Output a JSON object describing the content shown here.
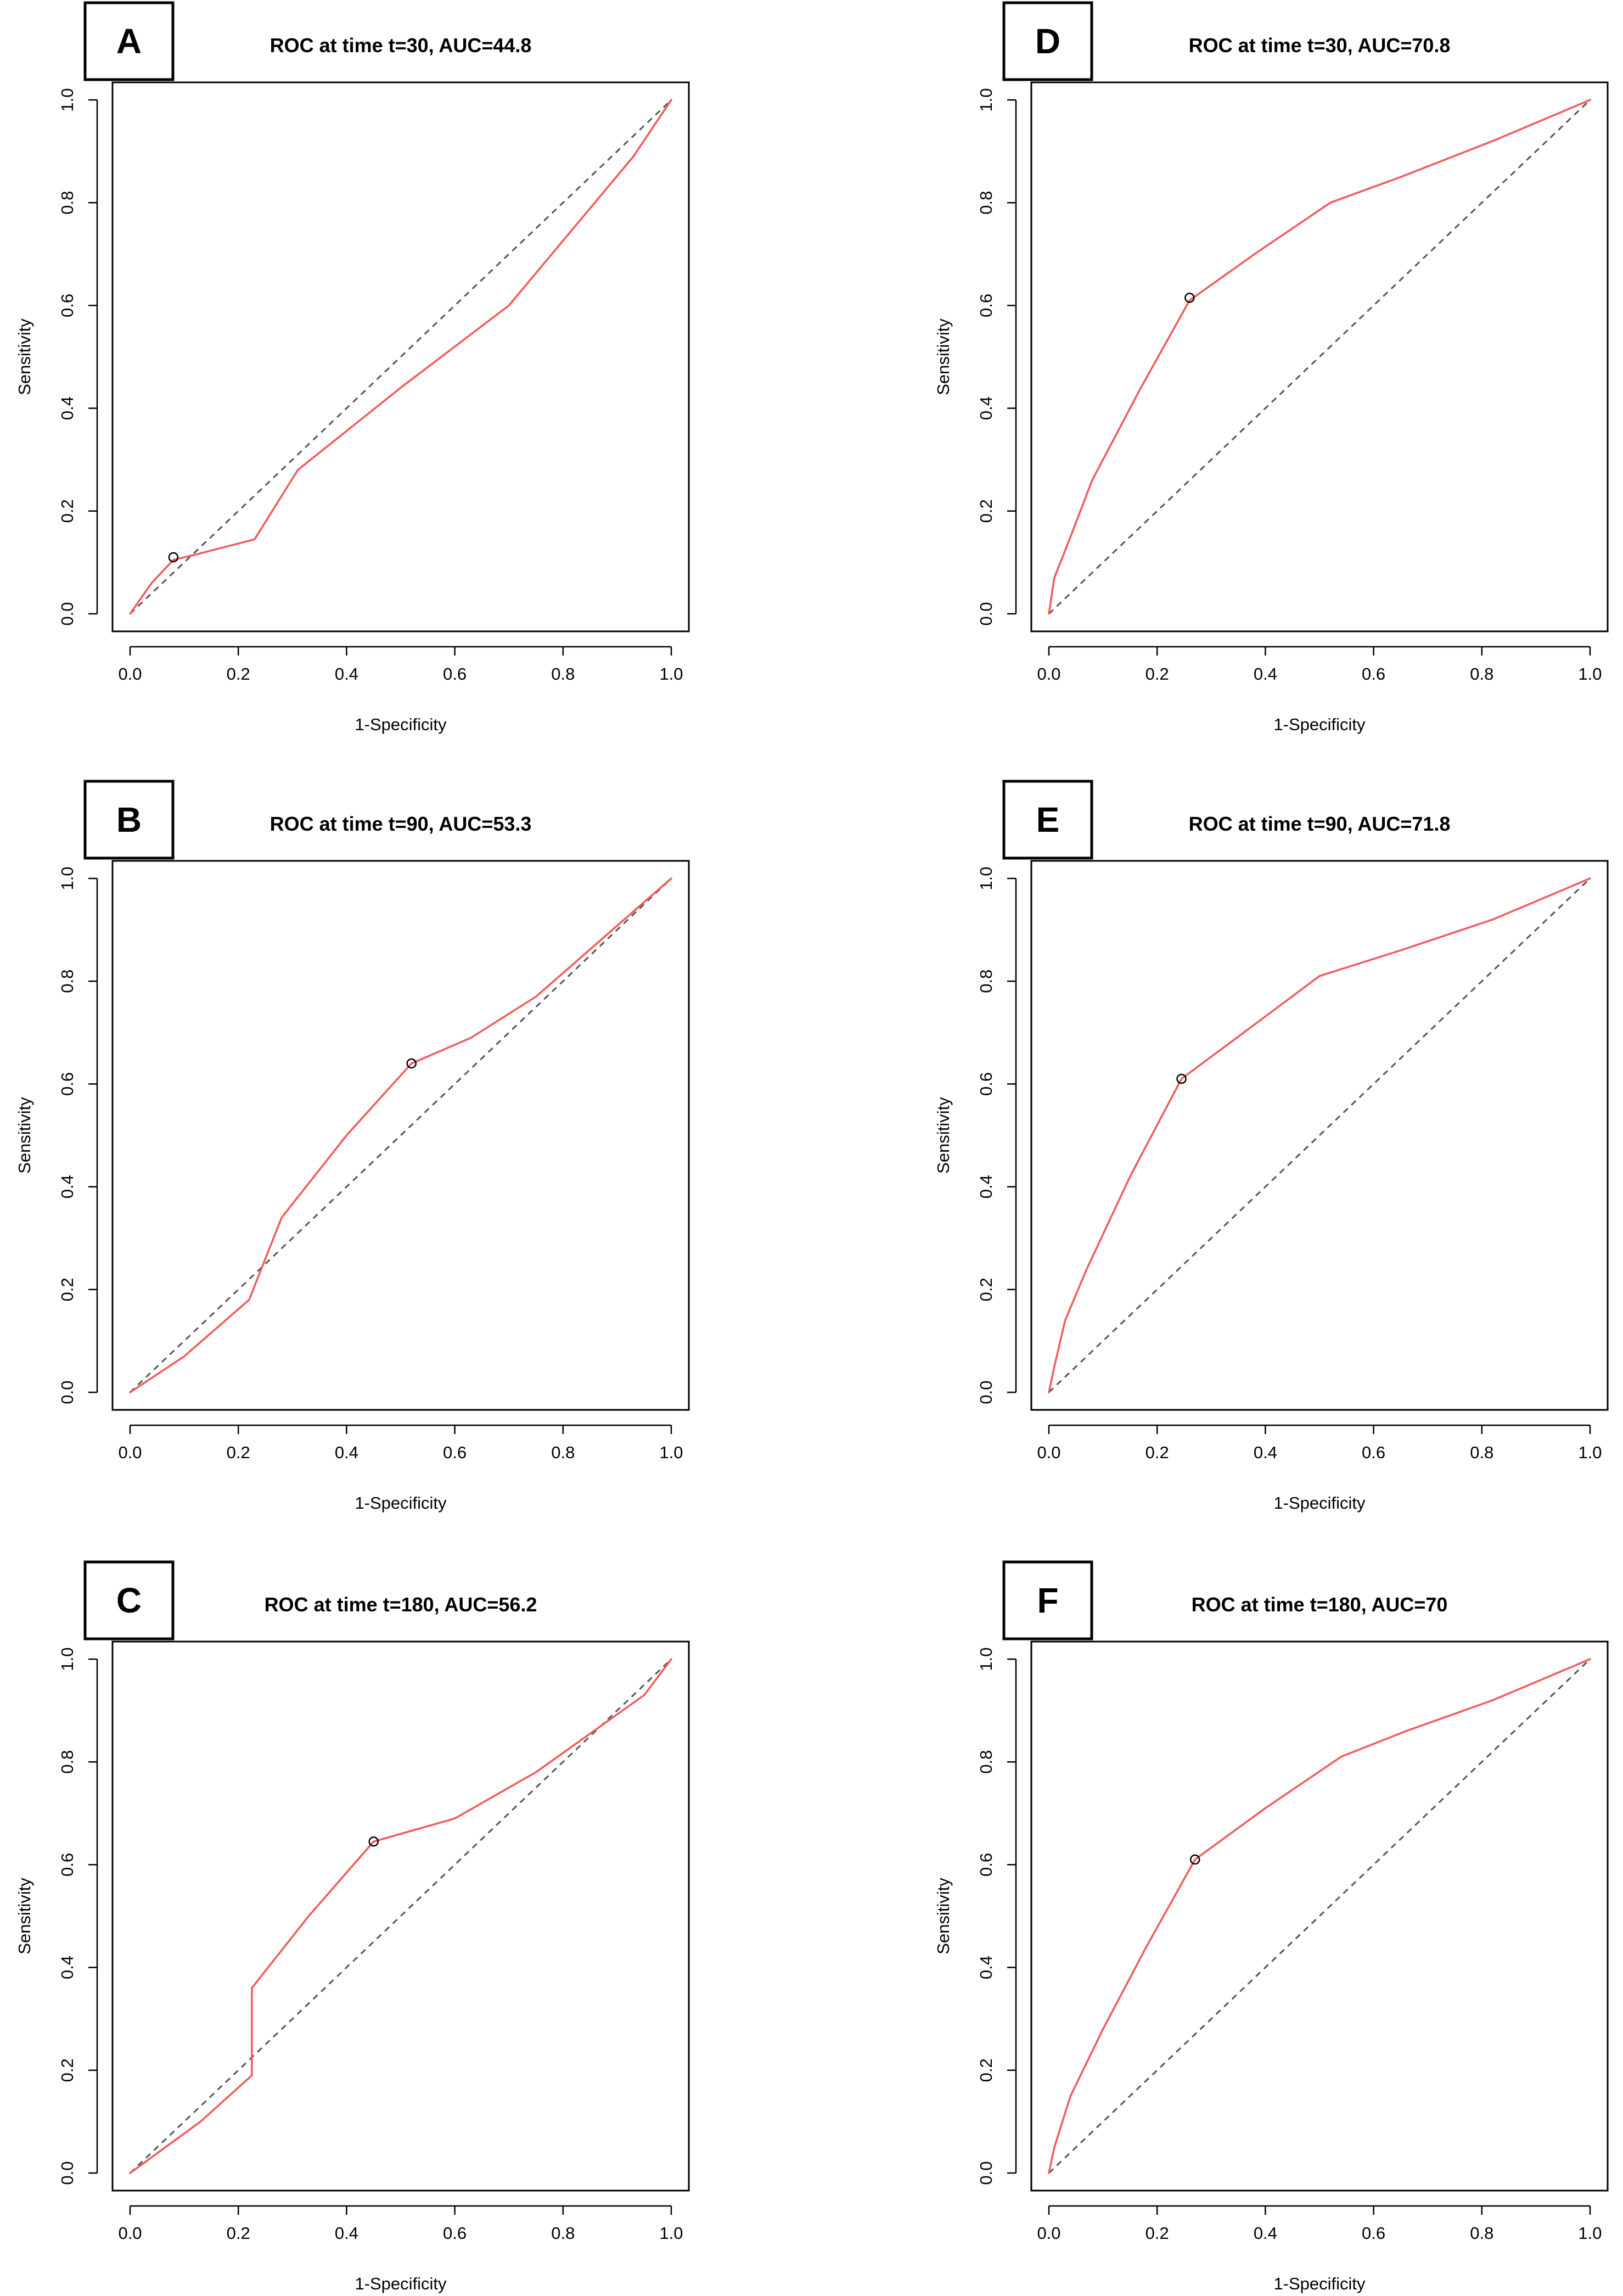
{
  "figure": {
    "description_panels": [
      "A",
      "B",
      "C",
      "D",
      "E",
      "F"
    ]
  },
  "colors": {
    "roc_curve": "#f25a5a",
    "diagonal": "#555555",
    "frame": "#000000"
  },
  "chart_data": [
    {
      "panel": "A",
      "type": "line",
      "title": "ROC at time t=30, AUC=44.8",
      "xlabel": "1-Specificity",
      "ylabel": "Sensitivity",
      "xlim": [
        0,
        1
      ],
      "ylim": [
        0,
        1
      ],
      "xticks": [
        "0.0",
        "0.2",
        "0.4",
        "0.6",
        "0.8",
        "1.0"
      ],
      "yticks": [
        "0.0",
        "0.2",
        "0.4",
        "0.6",
        "0.8",
        "1.0"
      ],
      "reference_line": {
        "x": [
          0,
          1
        ],
        "y": [
          0,
          1
        ],
        "style": "dashed"
      },
      "series": [
        {
          "name": "ROC",
          "x": [
            0,
            0.04,
            0.08,
            0.12,
            0.23,
            0.31,
            0.5,
            0.7,
            0.93,
            1.0
          ],
          "y": [
            0,
            0.06,
            0.105,
            0.115,
            0.145,
            0.28,
            0.44,
            0.6,
            0.89,
            1.0
          ]
        }
      ],
      "cutoff_point": {
        "x": 0.08,
        "y": 0.11
      }
    },
    {
      "panel": "B",
      "type": "line",
      "title": "ROC at time t=90, AUC=53.3",
      "xlabel": "1-Specificity",
      "ylabel": "Sensitivity",
      "xlim": [
        0,
        1
      ],
      "ylim": [
        0,
        1
      ],
      "xticks": [
        "0.0",
        "0.2",
        "0.4",
        "0.6",
        "0.8",
        "1.0"
      ],
      "yticks": [
        "0.0",
        "0.2",
        "0.4",
        "0.6",
        "0.8",
        "1.0"
      ],
      "reference_line": {
        "x": [
          0,
          1
        ],
        "y": [
          0,
          1
        ],
        "style": "dashed"
      },
      "series": [
        {
          "name": "ROC",
          "x": [
            0,
            0.1,
            0.22,
            0.25,
            0.28,
            0.4,
            0.52,
            0.63,
            0.75,
            1.0
          ],
          "y": [
            0,
            0.07,
            0.18,
            0.26,
            0.34,
            0.5,
            0.64,
            0.69,
            0.77,
            1.0
          ]
        }
      ],
      "cutoff_point": {
        "x": 0.52,
        "y": 0.64
      }
    },
    {
      "panel": "C",
      "type": "line",
      "title": "ROC at time t=180, AUC=56.2",
      "xlabel": "1-Specificity",
      "ylabel": "Sensitivity",
      "xlim": [
        0,
        1
      ],
      "ylim": [
        0,
        1
      ],
      "xticks": [
        "0.0",
        "0.2",
        "0.4",
        "0.6",
        "0.8",
        "1.0"
      ],
      "yticks": [
        "0.0",
        "0.2",
        "0.4",
        "0.6",
        "0.8",
        "1.0"
      ],
      "reference_line": {
        "x": [
          0,
          1
        ],
        "y": [
          0,
          1
        ],
        "style": "dashed"
      },
      "series": [
        {
          "name": "ROC",
          "x": [
            0,
            0.13,
            0.225,
            0.225,
            0.33,
            0.45,
            0.6,
            0.75,
            0.95,
            1.0
          ],
          "y": [
            0,
            0.1,
            0.19,
            0.36,
            0.5,
            0.645,
            0.69,
            0.78,
            0.93,
            1.0
          ]
        }
      ],
      "cutoff_point": {
        "x": 0.45,
        "y": 0.645
      }
    },
    {
      "panel": "D",
      "type": "line",
      "title": "ROC at time t=30, AUC=70.8",
      "xlabel": "1-Specificity",
      "ylabel": "Sensitivity",
      "xlim": [
        0,
        1
      ],
      "ylim": [
        0,
        1
      ],
      "xticks": [
        "0.0",
        "0.2",
        "0.4",
        "0.6",
        "0.8",
        "1.0"
      ],
      "yticks": [
        "0.0",
        "0.2",
        "0.4",
        "0.6",
        "0.8",
        "1.0"
      ],
      "reference_line": {
        "x": [
          0,
          1
        ],
        "y": [
          0,
          1
        ],
        "style": "dashed"
      },
      "series": [
        {
          "name": "ROC",
          "x": [
            0,
            0.01,
            0.04,
            0.08,
            0.17,
            0.26,
            0.38,
            0.52,
            0.65,
            0.82,
            1.0
          ],
          "y": [
            0,
            0.07,
            0.15,
            0.26,
            0.44,
            0.61,
            0.7,
            0.8,
            0.85,
            0.92,
            1.0
          ]
        }
      ],
      "cutoff_point": {
        "x": 0.26,
        "y": 0.615
      }
    },
    {
      "panel": "E",
      "type": "line",
      "title": "ROC at time t=90, AUC=71.8",
      "xlabel": "1-Specificity",
      "ylabel": "Sensitivity",
      "xlim": [
        0,
        1
      ],
      "ylim": [
        0,
        1
      ],
      "xticks": [
        "0.0",
        "0.2",
        "0.4",
        "0.6",
        "0.8",
        "1.0"
      ],
      "yticks": [
        "0.0",
        "0.2",
        "0.4",
        "0.6",
        "0.8",
        "1.0"
      ],
      "reference_line": {
        "x": [
          0,
          1
        ],
        "y": [
          0,
          1
        ],
        "style": "dashed"
      },
      "series": [
        {
          "name": "ROC",
          "x": [
            0,
            0.01,
            0.03,
            0.07,
            0.15,
            0.245,
            0.36,
            0.5,
            0.65,
            0.82,
            1.0
          ],
          "y": [
            0,
            0.05,
            0.14,
            0.24,
            0.42,
            0.61,
            0.7,
            0.81,
            0.86,
            0.92,
            1.0
          ]
        }
      ],
      "cutoff_point": {
        "x": 0.245,
        "y": 0.61
      }
    },
    {
      "panel": "F",
      "type": "line",
      "title": "ROC at time t=180, AUC=70",
      "xlabel": "1-Specificity",
      "ylabel": "Sensitivity",
      "xlim": [
        0,
        1
      ],
      "ylim": [
        0,
        1
      ],
      "xticks": [
        "0.0",
        "0.2",
        "0.4",
        "0.6",
        "0.8",
        "1.0"
      ],
      "yticks": [
        "0.0",
        "0.2",
        "0.4",
        "0.6",
        "0.8",
        "1.0"
      ],
      "reference_line": {
        "x": [
          0,
          1
        ],
        "y": [
          0,
          1
        ],
        "style": "dashed"
      },
      "series": [
        {
          "name": "ROC",
          "x": [
            0,
            0.01,
            0.04,
            0.1,
            0.18,
            0.27,
            0.4,
            0.54,
            0.66,
            0.82,
            1.0
          ],
          "y": [
            0,
            0.05,
            0.15,
            0.28,
            0.44,
            0.61,
            0.71,
            0.81,
            0.86,
            0.92,
            1.0
          ]
        }
      ],
      "cutoff_point": {
        "x": 0.27,
        "y": 0.61
      }
    }
  ]
}
